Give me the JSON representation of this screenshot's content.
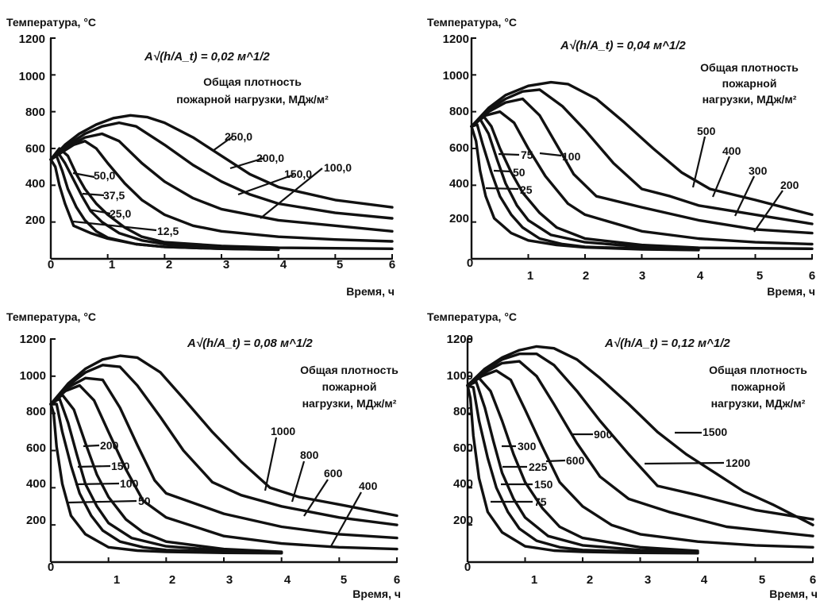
{
  "chart_data": [
    {
      "type": "line",
      "ylabel": "Температура, °С",
      "xlabel": "Время, ч",
      "param_label": "A√(h/A_t) = 0,02 м^1/2",
      "legend_title": [
        "Общая плотность",
        "пожарной нагрузки, МДж/м²"
      ],
      "xlim": [
        0,
        6
      ],
      "ylim": [
        0,
        1200
      ],
      "xticks": [
        "0",
        "1",
        "2",
        "3",
        "4",
        "5",
        "6"
      ],
      "yticks": [
        "200",
        "400",
        "600",
        "800",
        "1000",
        "1200"
      ],
      "series": [
        {
          "name": "250,0",
          "x": [
            0,
            0.25,
            0.5,
            0.8,
            1.1,
            1.4,
            1.7,
            2.0,
            2.5,
            3.0,
            3.5,
            4.0,
            5.0,
            6.0
          ],
          "y": [
            540,
            620,
            680,
            730,
            765,
            780,
            770,
            740,
            660,
            560,
            460,
            390,
            320,
            280
          ]
        },
        {
          "name": "200,0",
          "x": [
            0,
            0.3,
            0.6,
            0.9,
            1.2,
            1.5,
            2.0,
            2.5,
            3.0,
            3.5,
            4.0,
            5.0,
            6.0
          ],
          "y": [
            540,
            620,
            680,
            720,
            740,
            720,
            620,
            510,
            420,
            350,
            300,
            250,
            220
          ]
        },
        {
          "name": "150,0",
          "x": [
            0,
            0.3,
            0.6,
            0.9,
            1.2,
            1.6,
            2.0,
            2.5,
            3.0,
            4.0,
            5.0,
            6.0
          ],
          "y": [
            540,
            610,
            660,
            680,
            640,
            520,
            420,
            330,
            270,
            210,
            180,
            150
          ]
        },
        {
          "name": "100,0",
          "x": [
            0,
            0.2,
            0.4,
            0.6,
            0.8,
            1.0,
            1.3,
            1.6,
            2.0,
            2.5,
            3.0,
            4.0,
            5.0,
            6.0
          ],
          "y": [
            540,
            580,
            620,
            640,
            600,
            520,
            410,
            320,
            240,
            180,
            150,
            120,
            105,
            95
          ]
        },
        {
          "name": "50,0",
          "x": [
            0,
            0.15,
            0.3,
            0.45,
            0.6,
            0.8,
            1.0,
            1.3,
            1.6,
            2.0,
            3.0,
            4.0,
            6.0
          ],
          "y": [
            540,
            600,
            560,
            460,
            380,
            300,
            240,
            170,
            120,
            90,
            70,
            60,
            55
          ]
        },
        {
          "name": "37,5",
          "x": [
            0,
            0.12,
            0.25,
            0.4,
            0.55,
            0.7,
            0.9,
            1.2,
            1.6,
            2.0,
            3.0,
            4.0
          ],
          "y": [
            540,
            580,
            520,
            430,
            340,
            260,
            200,
            140,
            100,
            80,
            62,
            55
          ]
        },
        {
          "name": "25,0",
          "x": [
            0,
            0.1,
            0.2,
            0.3,
            0.45,
            0.6,
            0.8,
            1.0,
            1.5,
            2.0,
            3.0,
            4.0
          ],
          "y": [
            540,
            560,
            480,
            380,
            280,
            210,
            150,
            115,
            80,
            65,
            55,
            50
          ]
        },
        {
          "name": "12,5",
          "x": [
            0,
            0.08,
            0.15,
            0.25,
            0.4,
            0.7,
            1.0,
            1.5,
            2.0,
            3.0,
            4.0
          ],
          "y": [
            540,
            500,
            400,
            300,
            180,
            140,
            110,
            80,
            65,
            55,
            50
          ]
        }
      ],
      "curve_labels": [
        "250,0",
        "200,0",
        "150,0",
        "100,0",
        "50,0",
        "37,5",
        "25,0",
        "12,5"
      ]
    },
    {
      "type": "line",
      "ylabel": "Температура, °С",
      "xlabel": "Время, ч",
      "param_label": "A√(h/A_t) = 0,04 м^1/2",
      "legend_title": [
        "Общая плотность",
        "пожарной",
        "нагрузки, МДж/м²"
      ],
      "xlim": [
        0,
        6
      ],
      "ylim": [
        0,
        1200
      ],
      "xticks": [
        "0",
        "1",
        "2",
        "3",
        "4",
        "5",
        "6"
      ],
      "yticks": [
        "200",
        "400",
        "600",
        "800",
        "1000",
        "1200"
      ],
      "series": [
        {
          "name": "500",
          "x": [
            0,
            0.3,
            0.6,
            1.0,
            1.4,
            1.7,
            2.2,
            2.7,
            3.2,
            3.7,
            4.2,
            5.0,
            6.0
          ],
          "y": [
            720,
            820,
            890,
            940,
            960,
            950,
            870,
            740,
            600,
            470,
            380,
            320,
            240
          ]
        },
        {
          "name": "400",
          "x": [
            0,
            0.3,
            0.6,
            0.9,
            1.2,
            1.6,
            2.0,
            2.5,
            3.0,
            3.5,
            4.0,
            5.0,
            6.0
          ],
          "y": [
            720,
            810,
            870,
            910,
            920,
            830,
            700,
            520,
            380,
            340,
            290,
            240,
            190
          ]
        },
        {
          "name": "300",
          "x": [
            0,
            0.3,
            0.6,
            0.9,
            1.2,
            1.5,
            1.8,
            2.2,
            3.0,
            4.0,
            5.0,
            6.0
          ],
          "y": [
            720,
            800,
            850,
            870,
            780,
            620,
            460,
            340,
            280,
            210,
            160,
            140
          ]
        },
        {
          "name": "200",
          "x": [
            0,
            0.25,
            0.5,
            0.75,
            1.0,
            1.3,
            1.7,
            2.0,
            3.0,
            4.0,
            5.0,
            6.0
          ],
          "y": [
            720,
            780,
            800,
            740,
            600,
            450,
            300,
            240,
            150,
            110,
            90,
            80
          ]
        },
        {
          "name": "100",
          "x": [
            0,
            0.2,
            0.35,
            0.5,
            0.7,
            0.9,
            1.2,
            1.5,
            2.0,
            3.0,
            4.0,
            6.0
          ],
          "y": [
            720,
            780,
            720,
            600,
            470,
            360,
            250,
            170,
            110,
            75,
            60,
            55
          ]
        },
        {
          "name": "75",
          "x": [
            0,
            0.15,
            0.3,
            0.45,
            0.6,
            0.8,
            1.0,
            1.4,
            2.0,
            3.0,
            4.0
          ],
          "y": [
            720,
            760,
            680,
            540,
            410,
            290,
            210,
            130,
            90,
            65,
            55
          ]
        },
        {
          "name": "50",
          "x": [
            0,
            0.1,
            0.2,
            0.35,
            0.5,
            0.7,
            0.9,
            1.2,
            1.6,
            2.0,
            3.0,
            4.0
          ],
          "y": [
            720,
            730,
            620,
            470,
            340,
            240,
            170,
            110,
            80,
            65,
            55,
            50
          ]
        },
        {
          "name": "25",
          "x": [
            0,
            0.08,
            0.15,
            0.25,
            0.4,
            0.7,
            1.0,
            1.5,
            2.0,
            3.0,
            4.0
          ],
          "y": [
            720,
            640,
            480,
            340,
            220,
            140,
            100,
            75,
            62,
            52,
            48
          ]
        }
      ],
      "curve_labels": [
        "500",
        "400",
        "300",
        "200",
        "100",
        "75",
        "50",
        "25"
      ]
    },
    {
      "type": "line",
      "ylabel": "Температура, °С",
      "xlabel": "Время, ч",
      "param_label": "A√(h/A_t) = 0,08 м^1/2",
      "legend_title": [
        "Общая плотность",
        "пожарной",
        "нагрузки, МДж/м²"
      ],
      "xlim": [
        0,
        6
      ],
      "ylim": [
        0,
        1200
      ],
      "xticks": [
        "0",
        "1",
        "2",
        "3",
        "4",
        "5",
        "6"
      ],
      "yticks": [
        "200",
        "400",
        "600",
        "800",
        "1000",
        "1200"
      ],
      "series": [
        {
          "name": "1000",
          "x": [
            0,
            0.3,
            0.6,
            0.9,
            1.2,
            1.5,
            1.9,
            2.3,
            2.8,
            3.3,
            3.8,
            4.3,
            5.0,
            6.0
          ],
          "y": [
            850,
            960,
            1040,
            1090,
            1110,
            1100,
            1020,
            880,
            700,
            540,
            400,
            350,
            310,
            250
          ]
        },
        {
          "name": "800",
          "x": [
            0,
            0.3,
            0.6,
            0.9,
            1.2,
            1.5,
            1.9,
            2.3,
            2.8,
            3.3,
            4.0,
            5.0,
            6.0
          ],
          "y": [
            850,
            950,
            1020,
            1060,
            1050,
            950,
            780,
            600,
            430,
            360,
            300,
            240,
            200
          ]
        },
        {
          "name": "600",
          "x": [
            0,
            0.3,
            0.6,
            0.9,
            1.2,
            1.5,
            1.8,
            2.0,
            3.0,
            4.0,
            5.0,
            6.0
          ],
          "y": [
            850,
            940,
            990,
            980,
            830,
            630,
            440,
            370,
            260,
            190,
            150,
            130
          ]
        },
        {
          "name": "400",
          "x": [
            0,
            0.25,
            0.5,
            0.75,
            1.0,
            1.3,
            1.6,
            2.0,
            3.0,
            4.0,
            5.0,
            6.0
          ],
          "y": [
            850,
            920,
            950,
            870,
            700,
            500,
            330,
            240,
            140,
            100,
            80,
            70
          ]
        },
        {
          "name": "200",
          "x": [
            0,
            0.2,
            0.4,
            0.6,
            0.8,
            1.0,
            1.3,
            1.6,
            2.0,
            3.0,
            4.0
          ],
          "y": [
            850,
            900,
            820,
            640,
            470,
            350,
            230,
            160,
            110,
            70,
            55
          ]
        },
        {
          "name": "150",
          "x": [
            0,
            0.15,
            0.3,
            0.45,
            0.6,
            0.8,
            1.0,
            1.4,
            2.0,
            3.0,
            4.0
          ],
          "y": [
            850,
            880,
            750,
            580,
            420,
            300,
            210,
            130,
            85,
            62,
            52
          ]
        },
        {
          "name": "100",
          "x": [
            0,
            0.1,
            0.2,
            0.35,
            0.5,
            0.7,
            0.9,
            1.2,
            1.6,
            2.0,
            3.0,
            4.0
          ],
          "y": [
            850,
            850,
            700,
            520,
            370,
            250,
            170,
            110,
            80,
            65,
            55,
            50
          ]
        },
        {
          "name": "50",
          "x": [
            0,
            0.05,
            0.1,
            0.2,
            0.35,
            0.6,
            1.0,
            1.5,
            2.0,
            3.0,
            4.0
          ],
          "y": [
            850,
            800,
            620,
            420,
            250,
            150,
            80,
            62,
            55,
            50,
            48
          ]
        }
      ],
      "curve_labels": [
        "1000",
        "800",
        "600",
        "400",
        "200",
        "150",
        "100",
        "50"
      ]
    },
    {
      "type": "line",
      "ylabel": "Температура, °С",
      "xlabel": "Время, ч",
      "param_label": "A√(h/A_t) = 0,12 м^1/2",
      "legend_title": [
        "Общая плотность",
        "пожарной",
        "нагрузки, МДж/м²"
      ],
      "xlim": [
        0,
        6
      ],
      "ylim": [
        0,
        1200
      ],
      "xticks": [
        "0",
        "1",
        "2",
        "3",
        "4",
        "5",
        "6"
      ],
      "yticks": [
        "200",
        "400",
        "600",
        "800",
        "1000",
        "1200"
      ],
      "series": [
        {
          "name": "1500",
          "x": [
            0,
            0.3,
            0.6,
            0.9,
            1.2,
            1.5,
            1.9,
            2.3,
            2.8,
            3.3,
            3.8,
            4.3,
            4.8,
            5.3,
            6.0
          ],
          "y": [
            950,
            1040,
            1100,
            1140,
            1160,
            1150,
            1090,
            990,
            850,
            700,
            580,
            480,
            380,
            310,
            200
          ]
        },
        {
          "name": "1200",
          "x": [
            0,
            0.3,
            0.6,
            0.9,
            1.2,
            1.5,
            1.9,
            2.3,
            2.8,
            3.3,
            4.0,
            5.0,
            6.0
          ],
          "y": [
            950,
            1030,
            1090,
            1120,
            1120,
            1060,
            920,
            760,
            580,
            410,
            360,
            280,
            230
          ]
        },
        {
          "name": "900",
          "x": [
            0,
            0.3,
            0.6,
            0.9,
            1.2,
            1.5,
            1.9,
            2.3,
            2.8,
            3.5,
            4.5,
            6.0
          ],
          "y": [
            950,
            1020,
            1070,
            1080,
            1000,
            850,
            640,
            460,
            340,
            270,
            190,
            140
          ]
        },
        {
          "name": "600",
          "x": [
            0,
            0.25,
            0.5,
            0.75,
            1.0,
            1.3,
            1.6,
            2.0,
            2.5,
            3.0,
            4.0,
            5.0,
            6.0
          ],
          "y": [
            950,
            1000,
            1030,
            980,
            820,
            620,
            430,
            300,
            200,
            150,
            110,
            90,
            80
          ]
        },
        {
          "name": "300",
          "x": [
            0,
            0.2,
            0.4,
            0.6,
            0.8,
            1.0,
            1.3,
            1.6,
            2.0,
            3.0,
            4.0
          ],
          "y": [
            950,
            990,
            920,
            760,
            580,
            430,
            290,
            190,
            130,
            80,
            60
          ]
        },
        {
          "name": "225",
          "x": [
            0,
            0.15,
            0.3,
            0.45,
            0.6,
            0.8,
            1.0,
            1.4,
            2.0,
            3.0,
            4.0
          ],
          "y": [
            950,
            970,
            830,
            650,
            480,
            340,
            240,
            140,
            90,
            65,
            55
          ]
        },
        {
          "name": "150",
          "x": [
            0,
            0.1,
            0.2,
            0.35,
            0.5,
            0.7,
            0.9,
            1.2,
            1.6,
            2.0,
            3.0,
            4.0
          ],
          "y": [
            950,
            940,
            760,
            560,
            400,
            270,
            180,
            115,
            80,
            65,
            55,
            50
          ]
        },
        {
          "name": "75",
          "x": [
            0,
            0.05,
            0.1,
            0.2,
            0.35,
            0.6,
            1.0,
            1.5,
            2.0,
            3.0,
            4.0
          ],
          "y": [
            950,
            880,
            680,
            450,
            270,
            160,
            85,
            62,
            55,
            50,
            48
          ]
        }
      ],
      "curve_labels": [
        "1500",
        "1200",
        "900",
        "600",
        "300",
        "225",
        "150",
        "75"
      ]
    }
  ]
}
